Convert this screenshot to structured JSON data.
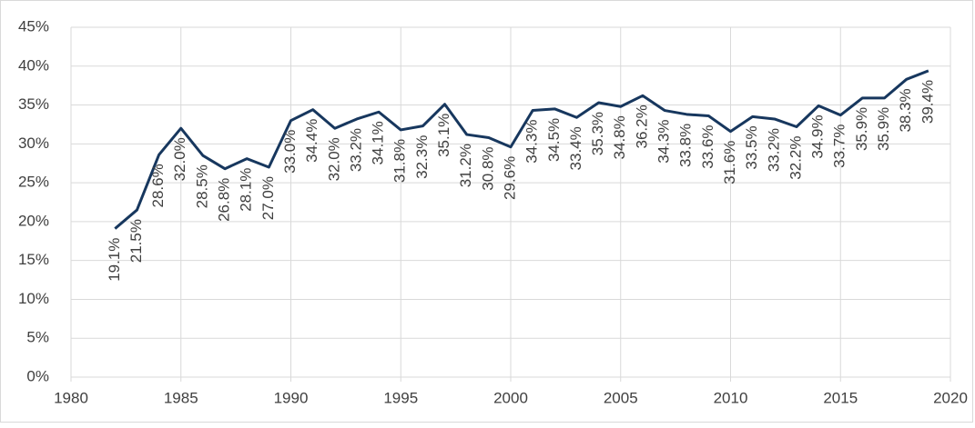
{
  "chart_data": {
    "type": "line",
    "x": [
      1982,
      1983,
      1984,
      1985,
      1986,
      1987,
      1988,
      1989,
      1990,
      1991,
      1992,
      1993,
      1994,
      1995,
      1996,
      1997,
      1998,
      1999,
      2000,
      2001,
      2002,
      2003,
      2004,
      2005,
      2006,
      2007,
      2008,
      2009,
      2010,
      2011,
      2012,
      2013,
      2014,
      2015,
      2016,
      2017,
      2018,
      2019
    ],
    "series": [
      {
        "color": "#17375e",
        "values": [
          19.1,
          21.5,
          28.6,
          32.0,
          28.5,
          26.8,
          28.1,
          27.0,
          33.0,
          34.4,
          32.0,
          33.2,
          34.1,
          31.8,
          32.3,
          35.1,
          31.2,
          30.8,
          29.6,
          34.3,
          34.5,
          33.4,
          35.3,
          34.8,
          36.2,
          34.3,
          33.8,
          33.6,
          31.6,
          33.5,
          33.2,
          32.2,
          34.9,
          33.7,
          35.9,
          35.9,
          38.3,
          39.4
        ],
        "value_labels": [
          "19.1%",
          "21.5%",
          "28.6%",
          "32.0%",
          "28.5%",
          "26.8%",
          "28.1%",
          "27.0%",
          "33.0%",
          "34.4%",
          "32.0%",
          "33.2%",
          "34.1%",
          "31.8%",
          "32.3%",
          "35.1%",
          "31.2%",
          "30.8%",
          "29.6%",
          "34.3%",
          "34.5%",
          "33.4%",
          "35.3%",
          "34.8%",
          "36.2%",
          "34.3%",
          "33.8%",
          "33.6%",
          "31.6%",
          "33.5%",
          "33.2%",
          "32.2%",
          "34.9%",
          "33.7%",
          "35.9%",
          "35.9%",
          "38.3%",
          "39.4%"
        ]
      }
    ],
    "xlim": [
      1980,
      2020
    ],
    "xticks": [
      1980,
      1985,
      1990,
      1995,
      2000,
      2005,
      2010,
      2015,
      2020
    ],
    "ylim": [
      0,
      45
    ],
    "yticks": [
      {
        "value": 0,
        "label": "0%"
      },
      {
        "value": 5,
        "label": "5%"
      },
      {
        "value": 10,
        "label": "10%"
      },
      {
        "value": 15,
        "label": "15%"
      },
      {
        "value": 20,
        "label": "20%"
      },
      {
        "value": 25,
        "label": "25%"
      },
      {
        "value": 30,
        "label": "30%"
      },
      {
        "value": 35,
        "label": "35%"
      },
      {
        "value": 40,
        "label": "40%"
      },
      {
        "value": 45,
        "label": "45%"
      }
    ],
    "grid": true
  }
}
